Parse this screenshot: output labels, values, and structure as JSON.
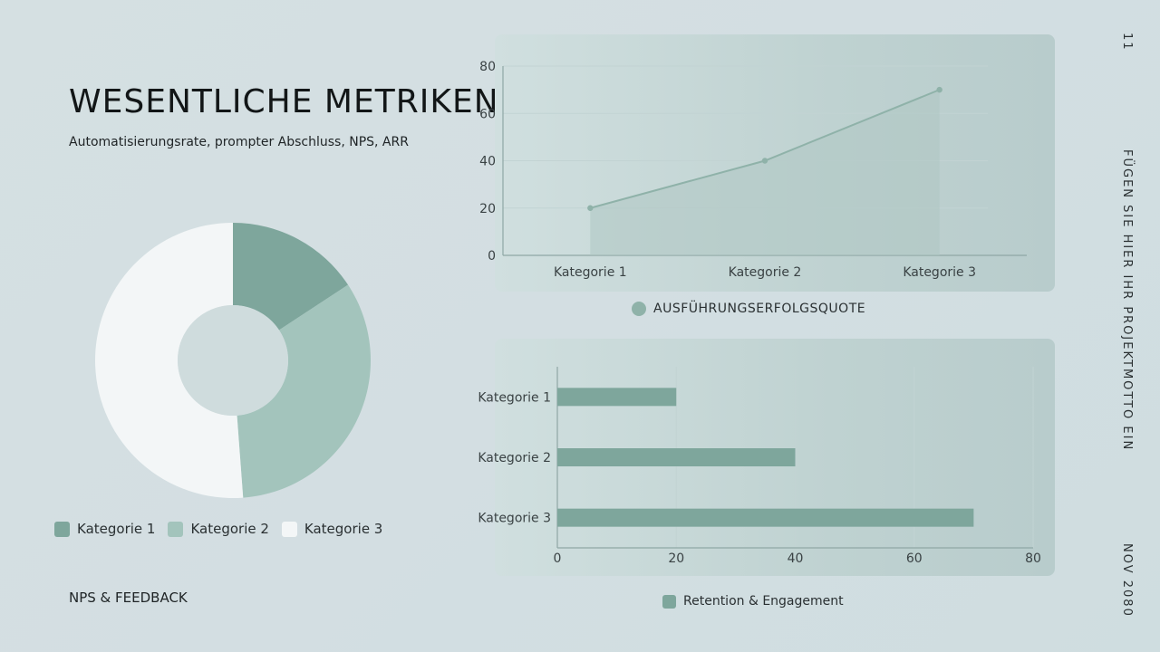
{
  "slide": {
    "title": "WESENTLICHE METRIKEN",
    "subtitle": "Automatisierungsrate, prompter Abschluss, NPS, ARR",
    "footer_label": "NPS & FEEDBACK",
    "page_number": "11",
    "motto": "FÜGEN SIE HIER IHR PROJEKTMOTTO EIN",
    "date": "NOV 2080"
  },
  "colors": {
    "accent_dark": "#7ea69c",
    "accent_mid": "#a3c4bc",
    "accent_light": "#f3f6f7",
    "line": "#8fb2a9",
    "area": "#aec6c2"
  },
  "chart_data": [
    {
      "type": "pie",
      "variant": "donut",
      "categories": [
        "Kategorie 1",
        "Kategorie 2",
        "Kategorie 3"
      ],
      "values": [
        2,
        4.2,
        6.5
      ],
      "colors": [
        "#7ea69c",
        "#a3c4bc",
        "#f3f6f7"
      ],
      "legend": "bottom"
    },
    {
      "type": "area",
      "categories": [
        "Kategorie 1",
        "Kategorie 2",
        "Kategorie 3"
      ],
      "series": [
        {
          "name": "AUSFÜHRUNGSERFOLGSQUOTE",
          "values": [
            20,
            40,
            70
          ]
        }
      ],
      "ylim": [
        0,
        80
      ],
      "yticks": [
        0,
        20,
        40,
        60,
        80
      ],
      "grid": true,
      "legend": "bottom"
    },
    {
      "type": "bar",
      "orientation": "horizontal",
      "categories": [
        "Kategorie 1",
        "Kategorie 2",
        "Kategorie 3"
      ],
      "series": [
        {
          "name": "Retention & Engagement",
          "values": [
            20,
            40,
            70
          ]
        }
      ],
      "xlim": [
        0,
        80
      ],
      "xticks": [
        0,
        20,
        40,
        60,
        80
      ],
      "grid": true,
      "legend": "bottom"
    }
  ]
}
